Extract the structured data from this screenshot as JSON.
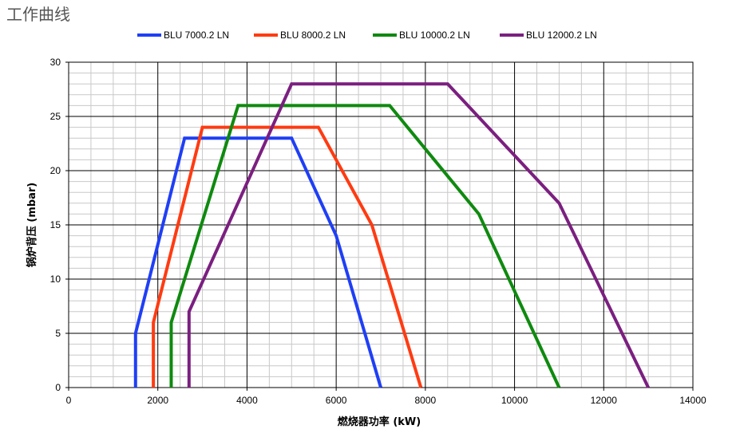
{
  "page": {
    "title": "工作曲线"
  },
  "chart_data": {
    "type": "line",
    "title": "",
    "xlabel": "燃烧器功率 (kW)",
    "ylabel": "锅炉背压 (mbar)",
    "xlim": [
      0,
      14000
    ],
    "ylim": [
      0,
      30
    ],
    "x_ticks": [
      "0",
      "2000",
      "4000",
      "6000",
      "8000",
      "10000",
      "12000",
      "14000"
    ],
    "y_ticks": [
      "0",
      "5",
      "10",
      "15",
      "20",
      "25",
      "30"
    ],
    "grid": true,
    "legend_position": "top",
    "series": [
      {
        "name": "BLU 7000.2 LN",
        "color": "#1f3ff5",
        "points": [
          [
            1500,
            0
          ],
          [
            1500,
            5
          ],
          [
            2600,
            23
          ],
          [
            5000,
            23
          ],
          [
            6000,
            14
          ],
          [
            7000,
            0
          ]
        ]
      },
      {
        "name": "BLU 8000.2 LN",
        "color": "#ff3b12",
        "points": [
          [
            1900,
            0
          ],
          [
            1900,
            6
          ],
          [
            3000,
            24
          ],
          [
            5600,
            24
          ],
          [
            6800,
            15
          ],
          [
            7900,
            0
          ]
        ]
      },
      {
        "name": "BLU 10000.2 LN",
        "color": "#0f8a0f",
        "points": [
          [
            2300,
            0
          ],
          [
            2300,
            6
          ],
          [
            3800,
            26
          ],
          [
            7200,
            26
          ],
          [
            9200,
            16
          ],
          [
            11000,
            0
          ]
        ]
      },
      {
        "name": "BLU 12000.2 LN",
        "color": "#7b1f80",
        "points": [
          [
            2700,
            0
          ],
          [
            2700,
            7
          ],
          [
            5000,
            28
          ],
          [
            8500,
            28
          ],
          [
            11000,
            17
          ],
          [
            13000,
            0
          ]
        ]
      }
    ]
  }
}
